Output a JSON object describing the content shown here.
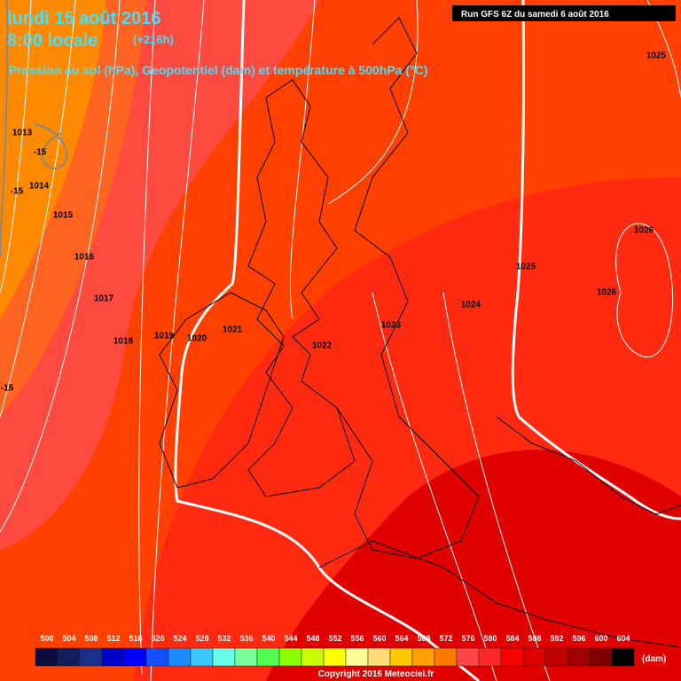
{
  "header": {
    "date": "lundi 15 août 2016",
    "time": "8:00 locale",
    "offset": "(+216h)",
    "subtitle": "Pression au sol (hPa), Geopotentiel (dam) et température à 500hPa (°C)",
    "run": "Run GFS 6Z du samedi 6 août 2016"
  },
  "isobar_labels": [
    "1025",
    "1026",
    "1026",
    "1025",
    "1024",
    "1023",
    "1022",
    "1021",
    "1020",
    "1019",
    "1018",
    "1017",
    "1016",
    "1015",
    "1014",
    "1013"
  ],
  "temperature_labels": [
    "-15",
    "-15",
    "-15"
  ],
  "colorbar": {
    "ticks": [
      "500",
      "504",
      "508",
      "512",
      "516",
      "520",
      "524",
      "528",
      "532",
      "536",
      "540",
      "544",
      "548",
      "552",
      "556",
      "560",
      "564",
      "568",
      "572",
      "576",
      "580",
      "584",
      "588",
      "592",
      "596",
      "600",
      "604"
    ],
    "colors": [
      "#0c0c40",
      "#121e5a",
      "#1a2e8c",
      "#0000c8",
      "#0000ff",
      "#1450ff",
      "#1e8cff",
      "#3cc8ff",
      "#64ffe6",
      "#78ff9c",
      "#50ff50",
      "#8cff00",
      "#c8ff00",
      "#ffff00",
      "#ffff96",
      "#ffdc78",
      "#ffc800",
      "#ffa000",
      "#ff7800",
      "#ff4646",
      "#ff2828",
      "#ff0000",
      "#dc0000",
      "#be0000",
      "#a00000",
      "#800000",
      "#000000"
    ],
    "unit": "(dam)"
  },
  "footer": "Copyright 2016 Meteociel.fr"
}
